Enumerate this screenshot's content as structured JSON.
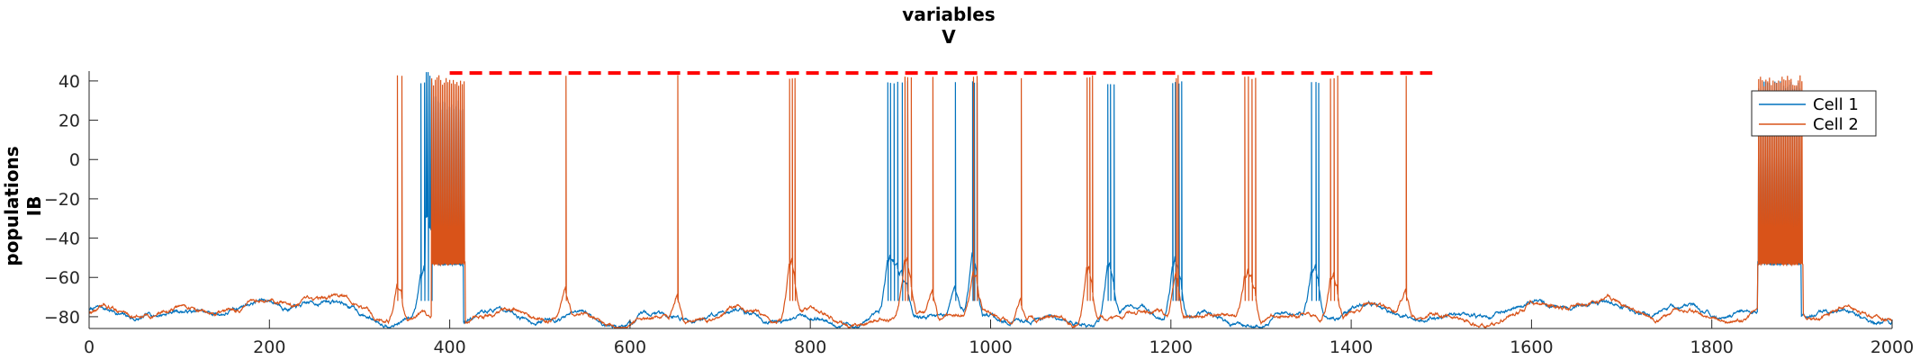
{
  "chart_data": {
    "type": "line",
    "title_lines": [
      "variables",
      "V"
    ],
    "ylabel_lines": [
      "populations",
      "IB"
    ],
    "xlabel": "",
    "xlim": [
      0,
      2000
    ],
    "ylim": [
      -86,
      45
    ],
    "x_ticks": [
      0,
      200,
      400,
      600,
      800,
      1000,
      1200,
      1400,
      1600,
      1800,
      2000
    ],
    "y_ticks": [
      -80,
      -60,
      -40,
      -20,
      0,
      20,
      40
    ],
    "grid": false,
    "legend_position": "top-right",
    "reference_line": {
      "y": 44,
      "x_start": 400,
      "x_end": 1490,
      "style": "dashed",
      "color": "#ff0000"
    },
    "series": [
      {
        "name": "Cell 1",
        "color": "#0072bd",
        "baseline": -80,
        "spike_peak": 40,
        "plateaus": [
          {
            "x_start": 373,
            "x_end": 415,
            "level": -53,
            "spike_top": 30
          },
          {
            "x_start": 1851,
            "x_end": 1899,
            "level": -53,
            "spike_top": 40
          }
        ],
        "spikes": [
          368,
          372,
          376,
          380,
          886,
          889,
          893,
          897,
          902,
          908,
          961,
          980,
          982,
          985,
          1130,
          1133,
          1137,
          1202,
          1205,
          1209,
          1212,
          1356,
          1361,
          1364
        ]
      },
      {
        "name": "Cell 2",
        "color": "#d95319",
        "baseline": -80,
        "spike_peak": 43,
        "plateaus": [
          {
            "x_start": 380,
            "x_end": 417,
            "level": -53,
            "spike_top": 43
          },
          {
            "x_start": 1851,
            "x_end": 1901,
            "level": -53,
            "spike_top": 43
          }
        ],
        "spikes": [
          342,
          347,
          529,
          653,
          777,
          780,
          783,
          905,
          908,
          912,
          936,
          981,
          985,
          1034,
          1107,
          1110,
          1113,
          1206,
          1208,
          1282,
          1286,
          1290,
          1294,
          1377,
          1381,
          1385,
          1461
        ]
      }
    ]
  }
}
